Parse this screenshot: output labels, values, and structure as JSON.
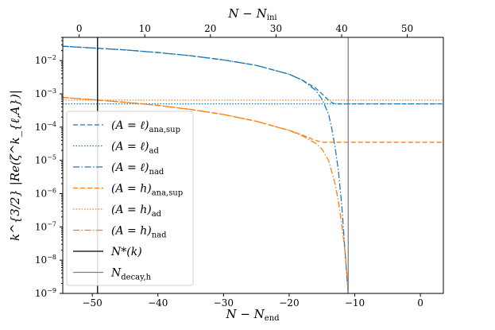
{
  "chart_data": {
    "type": "line",
    "xlabel_bottom": "N − N",
    "xlabel_bottom_sub": "end",
    "xlabel_top": "N − N",
    "xlabel_top_sub": "ini",
    "ylabel": "k^{3/2} |Re(ζ^k_{ℓ,A})|",
    "bottom_x_ticks": [
      -50,
      -40,
      -30,
      -20,
      -10,
      0
    ],
    "top_x_ticks": [
      0,
      10,
      20,
      30,
      40,
      50
    ],
    "xlim_bottom": [
      -54.5,
      3.5
    ],
    "xlim_top": [
      -2.5,
      55.5
    ],
    "ylim": [
      1e-09,
      0.05
    ],
    "yscale": "log",
    "y_tick_exponents": [
      -9,
      -8,
      -7,
      -6,
      -5,
      -4,
      -3,
      -2
    ],
    "y_tick_base": "10",
    "grid": false,
    "legend_position": "lower-left",
    "vlines": [
      {
        "name": "N*(k)",
        "x": -49.2,
        "color": "#000000"
      },
      {
        "name": "Ndecay,h",
        "x": -11.0,
        "color": "#808080"
      }
    ],
    "series": [
      {
        "name": "(A = ℓ)ana,sup",
        "legend_main": "(A = ℓ)",
        "legend_sub": "ana,sup",
        "color": "#1f77b4",
        "dash": "6,3",
        "x": [
          -54.5,
          -50,
          -45,
          -40,
          -35,
          -30,
          -25,
          -20,
          -18,
          -16,
          -15,
          -14.5,
          -14,
          -13.5,
          -13,
          3.5
        ],
        "y": [
          0.027,
          0.024,
          0.021,
          0.0175,
          0.014,
          0.0105,
          0.0072,
          0.0039,
          0.0026,
          0.0015,
          0.001,
          0.0008,
          0.00065,
          0.00055,
          0.0005,
          0.0005
        ]
      },
      {
        "name": "(A = ℓ)ad",
        "legend_main": "(A = ℓ)",
        "legend_sub": "ad",
        "color": "#1f77b4",
        "dash": "1.5,2",
        "x": [
          -54.5,
          3.5
        ],
        "y": [
          0.0005,
          0.0005
        ]
      },
      {
        "name": "(A = ℓ)nad",
        "legend_main": "(A = ℓ)",
        "legend_sub": "nad",
        "color": "#1f77b4",
        "dash": "8,2.5,1.5,2.5",
        "x": [
          -54.5,
          -50,
          -45,
          -40,
          -35,
          -30,
          -25,
          -20,
          -18,
          -16,
          -15,
          -14,
          -13.5,
          -13,
          -12.5,
          -12,
          -11.5,
          -11.2,
          -11.0
        ],
        "y": [
          0.027,
          0.024,
          0.021,
          0.0175,
          0.014,
          0.0105,
          0.0072,
          0.0039,
          0.0026,
          0.0013,
          0.0007,
          0.00025,
          9e-05,
          2.5e-05,
          5e-06,
          5e-07,
          2e-08,
          3e-09,
          1e-09
        ]
      },
      {
        "name": "(A = h)ana,sup",
        "legend_main": "(A = h)",
        "legend_sub": "ana,sup",
        "color": "#ff7f0e",
        "dash": "6,3",
        "x": [
          -54.5,
          -50,
          -45,
          -40,
          -35,
          -30,
          -25,
          -20,
          -18,
          -16,
          -15,
          -14,
          3.5
        ],
        "y": [
          0.00078,
          0.00067,
          0.00056,
          0.00045,
          0.00034,
          0.00024,
          0.00015,
          8e-05,
          5.8e-05,
          4e-05,
          3.5e-05,
          3.5e-05,
          3.5e-05
        ]
      },
      {
        "name": "(A = h)ad",
        "legend_main": "(A = h)",
        "legend_sub": "ad",
        "color": "#ff7f0e",
        "dash": "1.5,2",
        "x": [
          -54.5,
          3.5
        ],
        "y": [
          0.00065,
          0.00065
        ]
      },
      {
        "name": "(A = h)nad",
        "legend_main": "(A = h)",
        "legend_sub": "nad",
        "color": "#ff7f0e",
        "dash": "8,2.5,1.5,2.5",
        "x": [
          -54.5,
          -50,
          -45,
          -40,
          -35,
          -30,
          -25,
          -20,
          -18,
          -16,
          -15,
          -14,
          -13,
          -12.5,
          -12,
          -11.5,
          -11.2,
          -11.0
        ],
        "y": [
          0.00078,
          0.00067,
          0.00056,
          0.00045,
          0.00034,
          0.00024,
          0.00015,
          8e-05,
          5.5e-05,
          3.3e-05,
          2.2e-05,
          1e-05,
          2e-06,
          6e-07,
          1.2e-07,
          2e-08,
          4e-09,
          1e-09
        ]
      }
    ],
    "legend_entries": [
      {
        "main": "(A = ℓ)",
        "sub": "ana,sup",
        "color": "#1f77b4",
        "dash": "6,3"
      },
      {
        "main": "(A = ℓ)",
        "sub": "ad",
        "color": "#1f77b4",
        "dash": "1.5,2"
      },
      {
        "main": "(A = ℓ)",
        "sub": "nad",
        "color": "#1f77b4",
        "dash": "8,2.5,1.5,2.5"
      },
      {
        "main": "(A = h)",
        "sub": "ana,sup",
        "color": "#ff7f0e",
        "dash": "6,3"
      },
      {
        "main": "(A = h)",
        "sub": "ad",
        "color": "#ff7f0e",
        "dash": "1.5,2"
      },
      {
        "main": "(A = h)",
        "sub": "nad",
        "color": "#ff7f0e",
        "dash": "8,2.5,1.5,2.5"
      },
      {
        "main": "N*(k)",
        "sub": "",
        "color": "#000000",
        "dash": ""
      },
      {
        "main": "N",
        "sub": "decay,h",
        "color": "#808080",
        "dash": ""
      }
    ]
  }
}
